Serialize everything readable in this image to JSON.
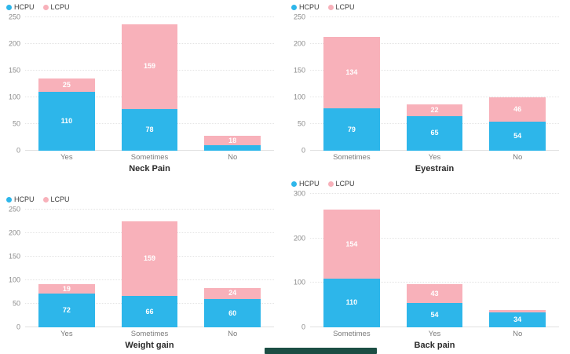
{
  "colors": {
    "hcpu": "#2db6ea",
    "lcpu": "#f8b1ba",
    "bar_label": "#ffffff",
    "axis_text": "#8a8a8a",
    "title_text": "#2b2b2b",
    "legend_text": "#3c3c3c",
    "gridline": "#e4e4e4",
    "bottom_bar": "#1c4e44"
  },
  "legend": {
    "items": [
      {
        "label": "HCPU",
        "color_key": "hcpu"
      },
      {
        "label": "LCPU",
        "color_key": "lcpu"
      }
    ]
  },
  "chart_data": [
    {
      "type": "bar",
      "stacked": true,
      "title": "Neck Pain",
      "categories": [
        "Yes",
        "Sometimes",
        "No"
      ],
      "series": [
        {
          "name": "HCPU",
          "values": [
            110,
            78,
            10
          ],
          "labels": [
            "110",
            "78",
            ""
          ]
        },
        {
          "name": "LCPU",
          "values": [
            25,
            159,
            18
          ],
          "labels": [
            "25",
            "159",
            "18"
          ]
        }
      ],
      "ylim": [
        0,
        250
      ],
      "yticks": [
        0,
        50,
        100,
        150,
        200,
        250
      ],
      "legend_position": "top-left",
      "grid": "horizontal-dotted"
    },
    {
      "type": "bar",
      "stacked": true,
      "title": "Eyestrain",
      "categories": [
        "Sometimes",
        "Yes",
        "No"
      ],
      "series": [
        {
          "name": "HCPU",
          "values": [
            79,
            65,
            54
          ],
          "labels": [
            "79",
            "65",
            "54"
          ]
        },
        {
          "name": "LCPU",
          "values": [
            134,
            22,
            46
          ],
          "labels": [
            "134",
            "22",
            "46"
          ]
        }
      ],
      "ylim": [
        0,
        250
      ],
      "yticks": [
        0,
        50,
        100,
        150,
        200,
        250
      ],
      "legend_position": "top-left",
      "grid": "horizontal-dotted"
    },
    {
      "type": "bar",
      "stacked": true,
      "title": "Weight gain",
      "categories": [
        "Yes",
        "Sometimes",
        "No"
      ],
      "series": [
        {
          "name": "HCPU",
          "values": [
            72,
            66,
            60
          ],
          "labels": [
            "72",
            "66",
            "60"
          ]
        },
        {
          "name": "LCPU",
          "values": [
            19,
            159,
            24
          ],
          "labels": [
            "19",
            "159",
            "24"
          ]
        }
      ],
      "ylim": [
        0,
        250
      ],
      "yticks": [
        0,
        50,
        100,
        150,
        200,
        250
      ],
      "legend_position": "top-left",
      "grid": "horizontal-dotted"
    },
    {
      "type": "bar",
      "stacked": true,
      "title": "Back pain",
      "categories": [
        "Sometimes",
        "Yes",
        "No"
      ],
      "series": [
        {
          "name": "HCPU",
          "values": [
            110,
            54,
            34
          ],
          "labels": [
            "110",
            "54",
            "34"
          ]
        },
        {
          "name": "LCPU",
          "values": [
            154,
            43,
            5
          ],
          "labels": [
            "154",
            "43",
            ""
          ]
        }
      ],
      "ylim": [
        0,
        300
      ],
      "yticks": [
        0,
        100,
        200,
        300
      ],
      "legend_position": "top-left",
      "grid": "horizontal-dotted"
    }
  ]
}
